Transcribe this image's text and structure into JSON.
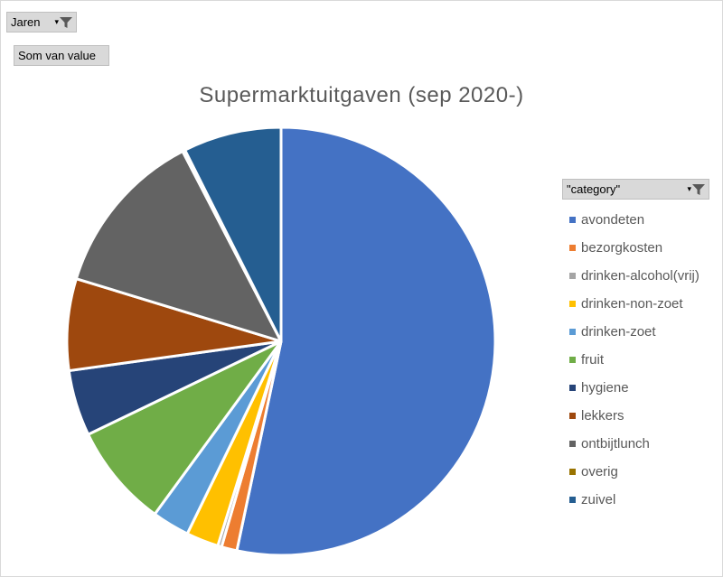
{
  "filters": {
    "years_label": "Jaren",
    "value_label": "Som van value",
    "category_label": "\"category\""
  },
  "chart_data": {
    "type": "pie",
    "title": "Supermarktuitgaven (sep 2020-)",
    "legend_position": "right",
    "slices": [
      {
        "name": "avondeten",
        "value": 54.7,
        "color": "#4472C4"
      },
      {
        "name": "bezorgkosten",
        "value": 1.2,
        "color": "#ED7D31"
      },
      {
        "name": "drinken-alcohol(vrij)",
        "value": 0.3,
        "color": "#A5A5A5"
      },
      {
        "name": "drinken-non-zoet",
        "value": 2.5,
        "color": "#FFC000"
      },
      {
        "name": "drinken-zoet",
        "value": 2.9,
        "color": "#5B9BD5"
      },
      {
        "name": "fruit",
        "value": 8.0,
        "color": "#70AD47"
      },
      {
        "name": "hygiene",
        "value": 5.1,
        "color": "#264478"
      },
      {
        "name": "lekkers",
        "value": 7.1,
        "color": "#9E480E"
      },
      {
        "name": "ontbijtlunch",
        "value": 13.0,
        "color": "#636363"
      },
      {
        "name": "overig",
        "value": 0.2,
        "color": "#997300"
      },
      {
        "name": "zuivel",
        "value": 7.6,
        "color": "#255E91"
      }
    ]
  }
}
